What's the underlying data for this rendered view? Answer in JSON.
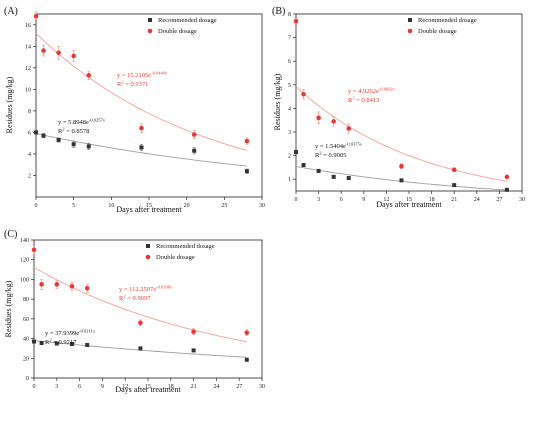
{
  "chart_data": [
    {
      "type": "scatter",
      "panel_label": "(A)",
      "xlabel": "Days after treatment",
      "ylabel": "Residues (mg/kg)",
      "xlim": [
        0,
        30
      ],
      "ylim": [
        0,
        17
      ],
      "xticks": [
        "0",
        "5",
        "10",
        "15",
        "20",
        "25",
        "30"
      ],
      "yticks": [
        "2",
        "4",
        "6",
        "8",
        "10",
        "12",
        "14",
        "16"
      ],
      "legend_position": "top-right",
      "series": [
        {
          "name": "Recommended dosage",
          "color": "#333333",
          "marker": "square",
          "x": [
            0,
            1,
            3,
            5,
            7,
            14,
            21,
            28
          ],
          "y": [
            6.0,
            5.7,
            5.3,
            4.9,
            4.7,
            4.6,
            4.3,
            2.4
          ],
          "err": [
            0.1,
            0.2,
            0.2,
            0.3,
            0.3,
            0.3,
            0.3,
            0.2
          ],
          "fit": {
            "a": 5.8948,
            "k": 0.0257,
            "equation": "y = 5.8948e",
            "exponent": "-0.0257x",
            "r2_label": "R",
            "r2_value": " = 0.8578"
          }
        },
        {
          "name": "Double dosage",
          "color": "#e53935",
          "marker": "circle",
          "x": [
            0,
            1,
            3,
            5,
            7,
            14,
            21,
            28
          ],
          "y": [
            16.8,
            13.6,
            13.4,
            13.1,
            11.3,
            6.4,
            5.8,
            5.2
          ],
          "err": [
            0.4,
            0.5,
            0.6,
            0.5,
            0.4,
            0.4,
            0.4,
            0.3
          ],
          "fit": {
            "a": 15.2105,
            "k": 0.0449,
            "equation": "y = 15.2105e",
            "exponent": "-0.0449x",
            "r2_label": "R",
            "r2_value": " = 0.9371"
          }
        }
      ]
    },
    {
      "type": "scatter",
      "panel_label": "(B)",
      "xlabel": "Days after treatment",
      "ylabel": "Residues (mg/kg)",
      "xlim": [
        0,
        30
      ],
      "ylim": [
        0.5,
        8
      ],
      "xticks": [
        "0",
        "3",
        "6",
        "9",
        "12",
        "15",
        "18",
        "21",
        "24",
        "27",
        "30"
      ],
      "yticks": [
        "1",
        "2",
        "3",
        "4",
        "5",
        "6",
        "7",
        "8"
      ],
      "legend_position": "top-right",
      "series": [
        {
          "name": "Recommended dosage",
          "color": "#333333",
          "marker": "square",
          "x": [
            0,
            1,
            3,
            5,
            7,
            14,
            21,
            28
          ],
          "y": [
            2.15,
            1.6,
            1.35,
            1.1,
            1.05,
            0.95,
            0.75,
            0.55
          ],
          "err": [
            0.05,
            0.06,
            0.06,
            0.05,
            0.05,
            0.04,
            0.04,
            0.03
          ],
          "fit": {
            "a": 1.5404,
            "k": 0.0375,
            "equation": "y = 1.5404e",
            "exponent": "-0.0375x",
            "r2_label": "R",
            "r2_value": " = 0.9005"
          }
        },
        {
          "name": "Double dosage",
          "color": "#e53935",
          "marker": "circle",
          "x": [
            0,
            1,
            3,
            5,
            7,
            14,
            21,
            28
          ],
          "y": [
            7.7,
            4.6,
            3.6,
            3.45,
            3.15,
            1.55,
            1.4,
            1.1
          ],
          "err": [
            0.15,
            0.2,
            0.25,
            0.2,
            0.2,
            0.1,
            0.08,
            0.06
          ],
          "fit": {
            "a": 4.9262,
            "k": 0.0602,
            "equation": "y = 4.9262e",
            "exponent": "-0.0602x",
            "r2_label": "R",
            "r2_value": " = 0.8413"
          }
        }
      ]
    },
    {
      "type": "scatter",
      "panel_label": "(C)",
      "xlabel": "Days after treatment",
      "ylabel": "Residues (mg/kg)",
      "xlim": [
        0,
        30
      ],
      "ylim": [
        0,
        140
      ],
      "xticks": [
        "0",
        "3",
        "6",
        "9",
        "12",
        "15",
        "18",
        "21",
        "24",
        "27",
        "30"
      ],
      "yticks": [
        "0",
        "20",
        "40",
        "60",
        "80",
        "100",
        "120",
        "140"
      ],
      "legend_position": "top-right",
      "series": [
        {
          "name": "Recommended dosage",
          "color": "#333333",
          "marker": "square",
          "x": [
            0,
            1,
            3,
            5,
            7,
            14,
            21,
            28
          ],
          "y": [
            37.0,
            35.5,
            35.0,
            34.5,
            33.5,
            30.0,
            28.0,
            18.5
          ],
          "err": [
            1.0,
            1.2,
            1.2,
            1.0,
            1.0,
            1.0,
            1.0,
            1.0
          ],
          "fit": {
            "a": 37.9399,
            "k": 0.0211,
            "equation": "y = 37.9399e",
            "exponent": "-0.0211x",
            "r2_label": "R",
            "r2_value": " = 0.9217"
          }
        },
        {
          "name": "Double dosage",
          "color": "#e53935",
          "marker": "circle",
          "x": [
            0,
            1,
            3,
            5,
            7,
            14,
            21,
            28
          ],
          "y": [
            130.0,
            95.0,
            95.0,
            93.0,
            91.0,
            56.0,
            47.0,
            46.0
          ],
          "err": [
            5.0,
            5.0,
            4.0,
            4.0,
            4.0,
            3.0,
            3.0,
            3.0
          ],
          "fit": {
            "a": 112.2507,
            "k": 0.0398,
            "equation": "y = 112.2507e",
            "exponent": "-0.0398x",
            "r2_label": "R",
            "r2_value": " = 0.9097"
          }
        }
      ]
    }
  ]
}
